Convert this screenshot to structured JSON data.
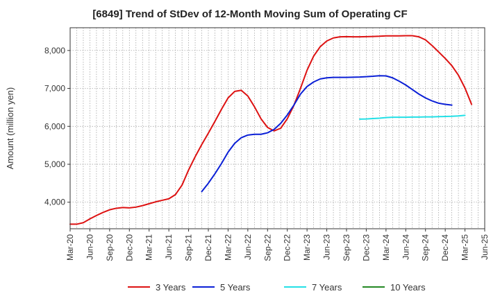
{
  "chart_data": {
    "type": "line",
    "title": "[6849]  Trend of StDev of 12-Month Moving Sum of Operating CF",
    "ylabel": "Amount (million yen)",
    "xlabel": "",
    "ylim": [
      3300,
      8600
    ],
    "yticks": [
      4000,
      5000,
      6000,
      7000,
      8000
    ],
    "ytick_labels": [
      "4,000",
      "5,000",
      "6,000",
      "7,000",
      "8,000"
    ],
    "x_start": "2020-03",
    "x_end": "2025-06",
    "xtick_labels": [
      "Mar-20",
      "Jun-20",
      "Sep-20",
      "Dec-20",
      "Mar-21",
      "Jun-21",
      "Sep-21",
      "Dec-21",
      "Mar-22",
      "Jun-22",
      "Sep-22",
      "Dec-22",
      "Mar-23",
      "Jun-23",
      "Sep-23",
      "Dec-23",
      "Mar-24",
      "Jun-24",
      "Sep-24",
      "Dec-24",
      "Mar-25",
      "Jun-25"
    ],
    "grid": true,
    "legend_position": "bottom",
    "series": [
      {
        "name": "3 Years",
        "color": "#dd1111",
        "start": "2020-03",
        "values": [
          3420,
          3420,
          3460,
          3560,
          3650,
          3730,
          3800,
          3840,
          3860,
          3850,
          3870,
          3910,
          3960,
          4010,
          4050,
          4090,
          4200,
          4450,
          4850,
          5200,
          5520,
          5820,
          6130,
          6450,
          6750,
          6920,
          6950,
          6800,
          6520,
          6200,
          5970,
          5880,
          5950,
          6200,
          6550,
          7000,
          7480,
          7850,
          8100,
          8250,
          8330,
          8360,
          8365,
          8360,
          8360,
          8365,
          8370,
          8375,
          8385,
          8385,
          8385,
          8390,
          8390,
          8360,
          8280,
          8130,
          7960,
          7790,
          7600,
          7350,
          7010,
          6580
        ]
      },
      {
        "name": "5 Years",
        "color": "#0a1fd6",
        "start": "2021-11",
        "values": [
          4280,
          4500,
          4750,
          5020,
          5320,
          5550,
          5700,
          5770,
          5790,
          5790,
          5830,
          5920,
          6080,
          6300,
          6560,
          6850,
          7050,
          7170,
          7250,
          7280,
          7290,
          7290,
          7290,
          7295,
          7300,
          7310,
          7320,
          7335,
          7330,
          7280,
          7190,
          7090,
          6970,
          6850,
          6750,
          6670,
          6610,
          6580,
          6560
        ]
      },
      {
        "name": "7 Years",
        "color": "#22e0e6",
        "start": "2023-11",
        "values": [
          6190,
          6195,
          6205,
          6215,
          6230,
          6240,
          6240,
          6240,
          6245,
          6245,
          6250,
          6250,
          6255,
          6260,
          6265,
          6275,
          6290
        ]
      },
      {
        "name": "10 Years",
        "color": "#228822",
        "start": "2025-03",
        "values": []
      }
    ]
  }
}
